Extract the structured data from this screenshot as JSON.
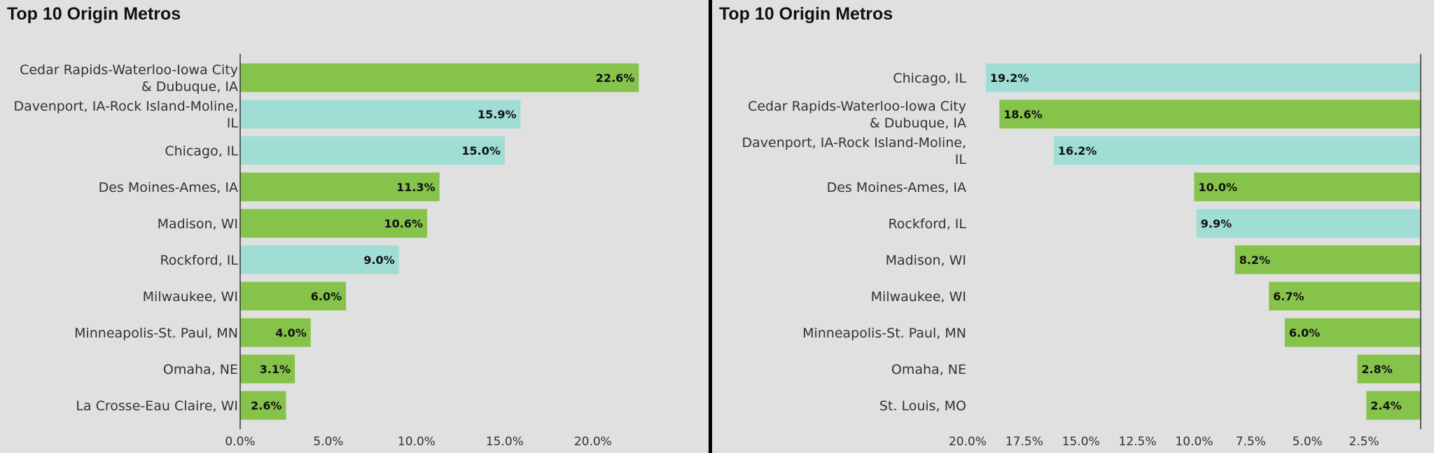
{
  "colors": {
    "green": "#86c34b",
    "teal": "#a0ded5",
    "background": "#e0e0e0"
  },
  "chart_data": [
    {
      "type": "bar",
      "orientation": "horizontal",
      "title": "Top 10 Origin Metros",
      "categories": [
        "Cedar Rapids-Waterloo-Iowa City & Dubuque, IA",
        "Davenport, IA-Rock Island-Moline, IL",
        "Chicago, IL",
        "Des Moines-Ames, IA",
        "Madison, WI",
        "Rockford, IL",
        "Milwaukee, WI",
        "Minneapolis-St. Paul, MN",
        "Omaha, NE",
        "La Crosse-Eau Claire, WI"
      ],
      "category_lines": [
        [
          "Cedar Rapids-Waterloo-Iowa City",
          "& Dubuque, IA"
        ],
        [
          "Davenport, IA-Rock Island-Moline,",
          "IL"
        ],
        [
          "Chicago, IL"
        ],
        [
          "Des Moines-Ames, IA"
        ],
        [
          "Madison, WI"
        ],
        [
          "Rockford, IL"
        ],
        [
          "Milwaukee, WI"
        ],
        [
          "Minneapolis-St. Paul, MN"
        ],
        [
          "Omaha, NE"
        ],
        [
          "La Crosse-Eau Claire, WI"
        ]
      ],
      "values": [
        22.6,
        15.9,
        15.0,
        11.3,
        10.6,
        9.0,
        6.0,
        4.0,
        3.1,
        2.6
      ],
      "value_labels": [
        "22.6%",
        "15.9%",
        "15.0%",
        "11.3%",
        "10.6%",
        "9.0%",
        "6.0%",
        "4.0%",
        "3.1%",
        "2.6%"
      ],
      "bar_colors": [
        "green",
        "teal",
        "teal",
        "green",
        "green",
        "teal",
        "green",
        "green",
        "green",
        "green"
      ],
      "ticks": [
        0,
        5,
        10,
        15,
        20
      ],
      "tick_labels": [
        "0.0%",
        "5.0%",
        "10.0%",
        "15.0%",
        "20.0%"
      ],
      "xlim": [
        0,
        23.5
      ],
      "reversed": false,
      "grid": false
    },
    {
      "type": "bar",
      "orientation": "horizontal",
      "title": "Top 10 Origin Metros",
      "categories": [
        "Chicago, IL",
        "Cedar Rapids-Waterloo-Iowa City & Dubuque, IA",
        "Davenport, IA-Rock Island-Moline, IL",
        "Des Moines-Ames, IA",
        "Rockford, IL",
        "Madison, WI",
        "Milwaukee, WI",
        "Minneapolis-St. Paul, MN",
        "Omaha, NE",
        "St. Louis, MO"
      ],
      "category_lines": [
        [
          "Chicago, IL"
        ],
        [
          "Cedar Rapids-Waterloo-Iowa City",
          "& Dubuque, IA"
        ],
        [
          "Davenport, IA-Rock Island-Moline,",
          "IL"
        ],
        [
          "Des Moines-Ames, IA"
        ],
        [
          "Rockford, IL"
        ],
        [
          "Madison, WI"
        ],
        [
          "Milwaukee, WI"
        ],
        [
          "Minneapolis-St. Paul, MN"
        ],
        [
          "Omaha, NE"
        ],
        [
          "St. Louis, MO"
        ]
      ],
      "values": [
        19.2,
        18.6,
        16.2,
        10.0,
        9.9,
        8.2,
        6.7,
        6.0,
        2.8,
        2.4
      ],
      "value_labels": [
        "19.2%",
        "18.6%",
        "16.2%",
        "10.0%",
        "9.9%",
        "8.2%",
        "6.7%",
        "6.0%",
        "2.8%",
        "2.4%"
      ],
      "bar_colors": [
        "teal",
        "green",
        "teal",
        "green",
        "teal",
        "green",
        "green",
        "green",
        "green",
        "green"
      ],
      "ticks": [
        20,
        17.5,
        15,
        12.5,
        10,
        7.5,
        5,
        2.5
      ],
      "tick_labels": [
        "20.0%",
        "17.5%",
        "15.0%",
        "12.5%",
        "10.0%",
        "7.5%",
        "5.0%",
        "2.5%"
      ],
      "xlim": [
        0,
        20
      ],
      "reversed": true,
      "grid": false
    }
  ]
}
